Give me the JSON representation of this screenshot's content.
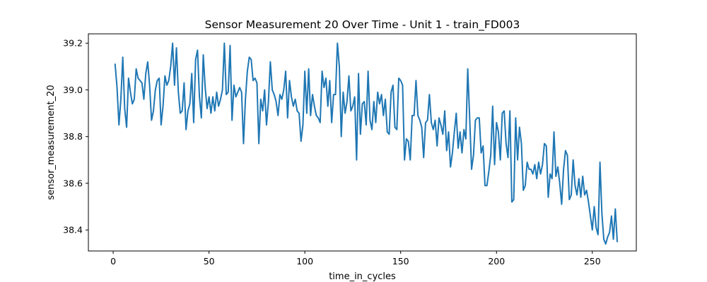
{
  "chart_data": {
    "type": "line",
    "title": "Sensor Measurement 20 Over Time - Unit 1 - train_FD003",
    "xlabel": "time_in_cycles",
    "ylabel": "sensor_measurement_20",
    "xlim": [
      -12.95,
      272.95
    ],
    "ylim": [
      38.31,
      39.24
    ],
    "x_ticks": [
      0,
      50,
      100,
      150,
      200,
      250
    ],
    "y_ticks": [
      38.4,
      38.6,
      38.8,
      39.0,
      39.2
    ],
    "x_tick_labels": [
      "0",
      "50",
      "100",
      "150",
      "200",
      "250"
    ],
    "y_tick_labels": [
      "38.4",
      "38.6",
      "38.8",
      "39.0",
      "39.2"
    ],
    "grid": false,
    "legend": "none",
    "line_color": "#1f77b4",
    "series": [
      {
        "x_start": 1,
        "values": [
          39.11,
          39.01,
          38.85,
          38.96,
          39.14,
          38.92,
          38.84,
          39.05,
          38.99,
          38.94,
          38.96,
          39.09,
          39.05,
          39.04,
          39.03,
          38.96,
          39.07,
          39.12,
          39.02,
          38.87,
          38.91,
          39.0,
          39.04,
          39.05,
          38.85,
          38.93,
          39.06,
          39.02,
          39.04,
          39.1,
          39.2,
          39.02,
          39.18,
          38.99,
          38.9,
          38.91,
          39.03,
          38.83,
          38.91,
          38.94,
          39.07,
          38.86,
          39.13,
          39.17,
          38.97,
          38.88,
          39.15,
          39.01,
          38.92,
          38.97,
          38.9,
          38.97,
          38.91,
          38.99,
          38.93,
          38.96,
          39.0,
          39.2,
          38.98,
          38.99,
          39.19,
          38.87,
          39.02,
          38.97,
          38.99,
          39.01,
          38.99,
          38.77,
          38.96,
          39.08,
          39.14,
          39.13,
          39.04,
          39.05,
          39.03,
          38.77,
          38.96,
          38.91,
          39.0,
          38.85,
          38.95,
          39.12,
          39.0,
          38.98,
          38.95,
          38.89,
          38.98,
          38.96,
          39.0,
          39.08,
          38.88,
          39.04,
          38.97,
          38.93,
          38.96,
          38.91,
          38.9,
          38.78,
          38.85,
          39.08,
          38.9,
          39.09,
          38.89,
          38.98,
          38.93,
          38.89,
          38.88,
          38.86,
          39.08,
          39.01,
          39.05,
          38.93,
          39.04,
          38.86,
          38.98,
          38.98,
          39.2,
          39.1,
          38.8,
          38.99,
          38.9,
          38.95,
          39.06,
          38.91,
          38.93,
          38.97,
          38.7,
          39.07,
          38.81,
          38.94,
          38.95,
          38.85,
          39.08,
          38.87,
          38.83,
          38.95,
          38.86,
          38.99,
          38.94,
          38.98,
          38.89,
          38.96,
          38.82,
          38.81,
          38.99,
          39.02,
          38.84,
          38.83,
          39.05,
          39.04,
          39.02,
          38.7,
          38.79,
          38.78,
          38.7,
          38.89,
          38.89,
          39.04,
          38.89,
          38.87,
          38.84,
          38.71,
          38.86,
          38.87,
          38.98,
          38.86,
          38.83,
          38.87,
          38.76,
          38.88,
          38.85,
          38.81,
          38.91,
          38.74,
          38.82,
          38.67,
          38.73,
          38.82,
          38.9,
          38.75,
          38.82,
          38.73,
          38.83,
          38.79,
          39.09,
          38.88,
          38.66,
          38.72,
          38.87,
          38.88,
          38.88,
          38.73,
          38.76,
          38.59,
          38.59,
          38.65,
          38.72,
          38.93,
          38.68,
          38.86,
          38.82,
          38.7,
          38.9,
          38.91,
          38.77,
          38.71,
          38.91,
          38.52,
          38.53,
          38.88,
          38.7,
          38.84,
          38.77,
          38.57,
          38.59,
          38.69,
          38.66,
          38.66,
          38.64,
          38.68,
          38.62,
          38.69,
          38.64,
          38.68,
          38.77,
          38.76,
          38.54,
          38.64,
          38.62,
          38.82,
          38.63,
          38.67,
          38.6,
          38.51,
          38.66,
          38.74,
          38.72,
          38.53,
          38.55,
          38.7,
          38.59,
          38.55,
          38.62,
          38.54,
          38.63,
          38.55,
          38.57,
          38.52,
          38.46,
          38.4,
          38.5,
          38.41,
          38.38,
          38.69,
          38.47,
          38.36,
          38.34,
          38.37,
          38.39,
          38.46,
          38.36,
          38.49,
          38.35
        ]
      }
    ]
  }
}
